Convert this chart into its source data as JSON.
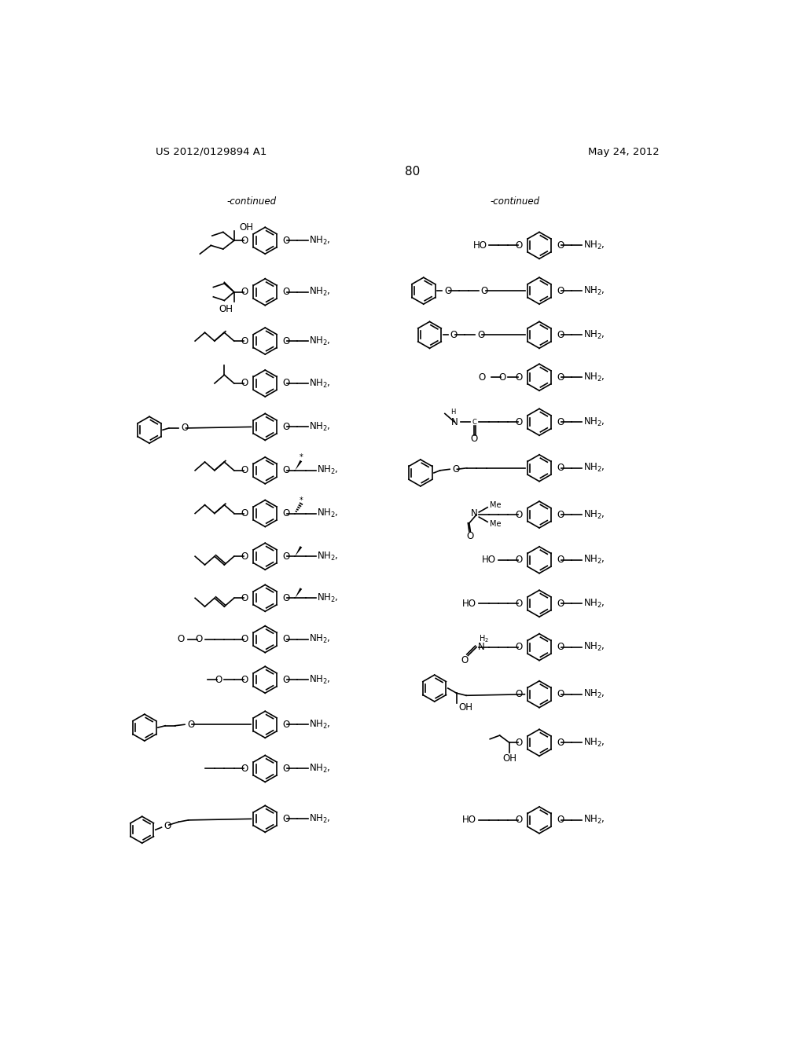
{
  "background_color": "#ffffff",
  "page_number": "80",
  "patent_number": "US 2012/0129894 A1",
  "patent_date": "May 24, 2012",
  "continued_left": "-continued",
  "continued_right": "-continued",
  "figsize": [
    10.24,
    13.2
  ],
  "dpi": 100
}
